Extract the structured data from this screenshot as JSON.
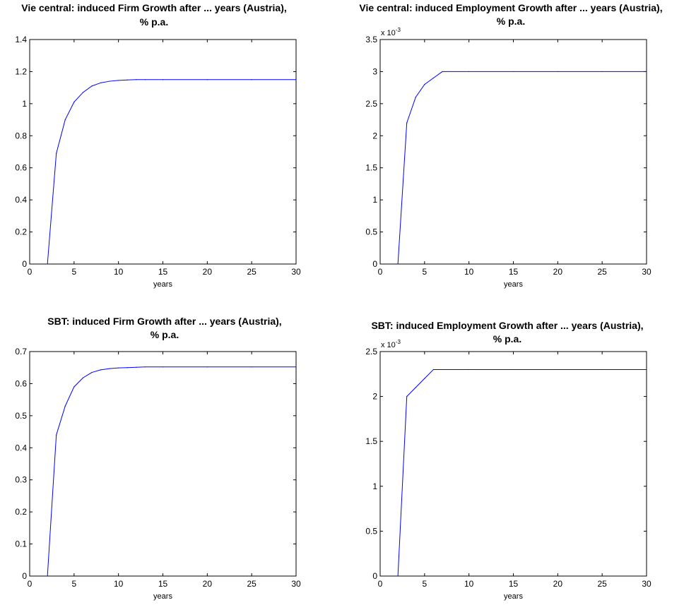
{
  "chart_data": [
    {
      "type": "line",
      "title": [
        "Vie central: induced Firm Growth after ... years (Austria),",
        "% p.a."
      ],
      "xlabel": "years",
      "ylabel": "",
      "xlim": [
        0,
        30
      ],
      "ylim": [
        0,
        1.4
      ],
      "xticks": [
        "0",
        "5",
        "10",
        "15",
        "20",
        "25",
        "30"
      ],
      "yticks": [
        "0",
        "0.2",
        "0.4",
        "0.6",
        "0.8",
        "1",
        "1.2",
        "1.4"
      ],
      "multiplier": "",
      "color": "#0000ff",
      "series": [
        {
          "x": [
            2,
            3,
            4,
            5,
            6,
            7,
            8,
            9,
            10,
            11,
            12,
            13,
            15,
            20,
            25,
            30
          ],
          "y": [
            0,
            0.69,
            0.9,
            1.01,
            1.07,
            1.11,
            1.13,
            1.14,
            1.145,
            1.148,
            1.15,
            1.15,
            1.15,
            1.15,
            1.15,
            1.15
          ]
        }
      ]
    },
    {
      "type": "line",
      "title": [
        "Vie central: induced Employment Growth after ... years (Austria),",
        "% p.a."
      ],
      "xlabel": "years",
      "ylabel": "",
      "xlim": [
        0,
        30
      ],
      "ylim": [
        0,
        3.5
      ],
      "xticks": [
        "0",
        "5",
        "10",
        "15",
        "20",
        "25",
        "30"
      ],
      "yticks": [
        "0",
        "0.5",
        "1",
        "1.5",
        "2",
        "2.5",
        "3",
        "3.5"
      ],
      "multiplier": [
        "x 10",
        "-3"
      ],
      "color": "#0000ff",
      "series": [
        {
          "x": [
            2,
            3,
            4,
            5,
            6,
            7,
            10,
            15,
            20,
            25,
            30
          ],
          "y": [
            0,
            2.2,
            2.6,
            2.8,
            2.9,
            3.0,
            3.0,
            3.0,
            3.0,
            3.0,
            3.0
          ]
        }
      ]
    },
    {
      "type": "line",
      "title": [
        "SBT: induced Firm Growth after ... years (Austria),",
        "% p.a."
      ],
      "xlabel": "years",
      "ylabel": "",
      "xlim": [
        0,
        30
      ],
      "ylim": [
        0,
        0.7
      ],
      "xticks": [
        "0",
        "5",
        "10",
        "15",
        "20",
        "25",
        "30"
      ],
      "yticks": [
        "0",
        "0.1",
        "0.2",
        "0.3",
        "0.4",
        "0.5",
        "0.6",
        "0.7"
      ],
      "multiplier": "",
      "color": "#0000ff",
      "series": [
        {
          "x": [
            2,
            3,
            4,
            5,
            6,
            7,
            8,
            9,
            10,
            11,
            12,
            13,
            15,
            20,
            25,
            30
          ],
          "y": [
            0,
            0.44,
            0.53,
            0.59,
            0.618,
            0.635,
            0.643,
            0.647,
            0.649,
            0.65,
            0.651,
            0.652,
            0.652,
            0.652,
            0.652,
            0.652
          ]
        }
      ]
    },
    {
      "type": "line",
      "title": [
        "SBT: induced Employment Growth after ... years (Austria),",
        "% p.a."
      ],
      "xlabel": "years",
      "ylabel": "",
      "xlim": [
        0,
        30
      ],
      "ylim": [
        0,
        2.5
      ],
      "xticks": [
        "0",
        "5",
        "10",
        "15",
        "20",
        "25",
        "30"
      ],
      "yticks": [
        "0",
        "0.5",
        "1",
        "1.5",
        "2",
        "2.5"
      ],
      "multiplier": [
        "x 10",
        "-3"
      ],
      "color": "#0000ff",
      "series": [
        {
          "x": [
            2,
            3,
            4,
            5,
            6,
            10,
            15,
            20,
            25,
            30
          ],
          "y": [
            0,
            2.0,
            2.1,
            2.2,
            2.3,
            2.3,
            2.3,
            2.3,
            2.3,
            2.3
          ]
        }
      ]
    }
  ]
}
